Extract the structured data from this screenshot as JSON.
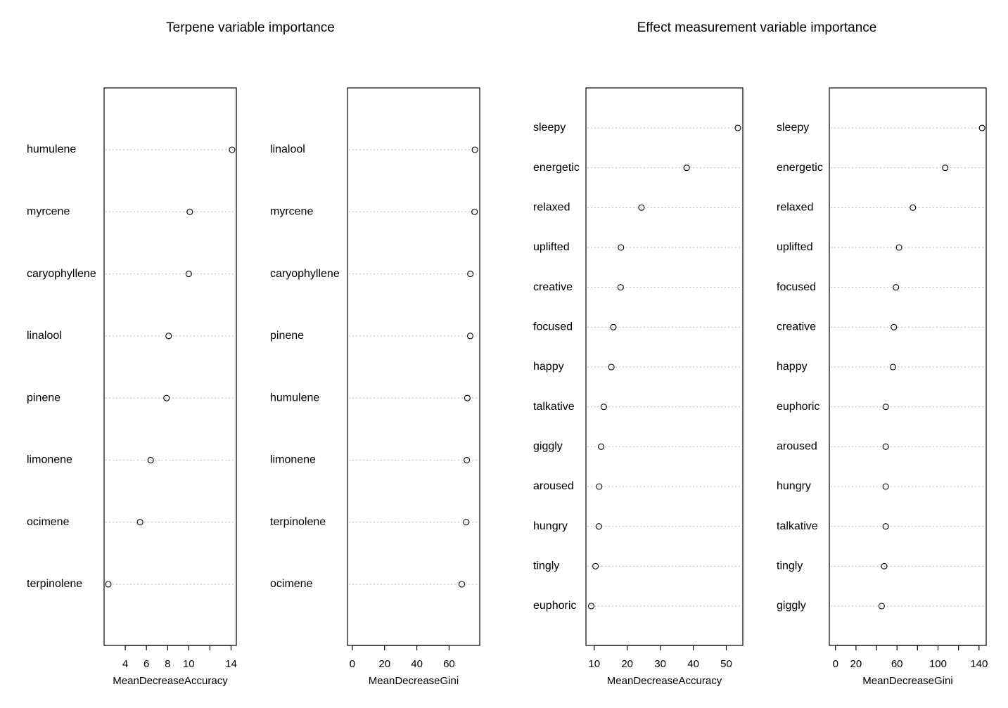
{
  "titles": {
    "left": "Terpene variable importance",
    "right": "Effect measurement variable importance"
  },
  "chart_data": [
    {
      "type": "scatter",
      "group": "left",
      "title": "",
      "xlabel": "MeanDecreaseAccuracy",
      "xlim": [
        2.0,
        14.5
      ],
      "xticks": [
        4,
        6,
        8,
        10,
        12,
        14
      ],
      "xtick_labels": [
        "4",
        "6",
        "8",
        "10",
        "",
        "14"
      ],
      "labels": [
        "humulene",
        "myrcene",
        "caryophyllene",
        "linalool",
        "pinene",
        "limonene",
        "ocimene",
        "terpinolene"
      ],
      "values": [
        14.1,
        10.1,
        10.0,
        8.1,
        7.9,
        6.4,
        5.4,
        2.4
      ]
    },
    {
      "type": "scatter",
      "group": "left",
      "title": "",
      "xlabel": "MeanDecreaseGini",
      "xlim": [
        -3,
        79
      ],
      "xticks": [
        0,
        20,
        40,
        60
      ],
      "xtick_labels": [
        "0",
        "20",
        "40",
        "60"
      ],
      "labels": [
        "linalool",
        "myrcene",
        "caryophyllene",
        "pinene",
        "humulene",
        "limonene",
        "terpinolene",
        "ocimene"
      ],
      "values": [
        76.0,
        75.8,
        73.2,
        73.1,
        71.3,
        71.0,
        70.6,
        67.9
      ]
    },
    {
      "type": "scatter",
      "group": "right",
      "title": "",
      "xlabel": "MeanDecreaseAccuracy",
      "xlim": [
        7.5,
        55
      ],
      "xticks": [
        10,
        20,
        30,
        40,
        50
      ],
      "xtick_labels": [
        "10",
        "20",
        "30",
        "40",
        "50"
      ],
      "labels": [
        "sleepy",
        "energetic",
        "relaxed",
        "uplifted",
        "creative",
        "focused",
        "happy",
        "talkative",
        "giggly",
        "aroused",
        "hungry",
        "tingly",
        "euphoric"
      ],
      "values": [
        53.5,
        38.0,
        24.3,
        18.1,
        18.0,
        15.8,
        15.2,
        12.9,
        12.1,
        11.5,
        11.4,
        10.4,
        9.1
      ]
    },
    {
      "type": "scatter",
      "group": "right",
      "title": "",
      "xlabel": "MeanDecreaseGini",
      "xlim": [
        -6,
        147
      ],
      "xticks": [
        0,
        20,
        40,
        60,
        80,
        100,
        120,
        140
      ],
      "xtick_labels": [
        "0",
        "20",
        "",
        "60",
        "",
        "100",
        "",
        "140"
      ],
      "labels": [
        "sleepy",
        "energetic",
        "relaxed",
        "uplifted",
        "focused",
        "creative",
        "happy",
        "euphoric",
        "aroused",
        "hungry",
        "talkative",
        "tingly",
        "giggly"
      ],
      "values": [
        143.0,
        107.0,
        75.5,
        62.0,
        59.0,
        57.0,
        56.0,
        49.0,
        49.0,
        49.0,
        49.0,
        47.5,
        45.0
      ]
    }
  ]
}
